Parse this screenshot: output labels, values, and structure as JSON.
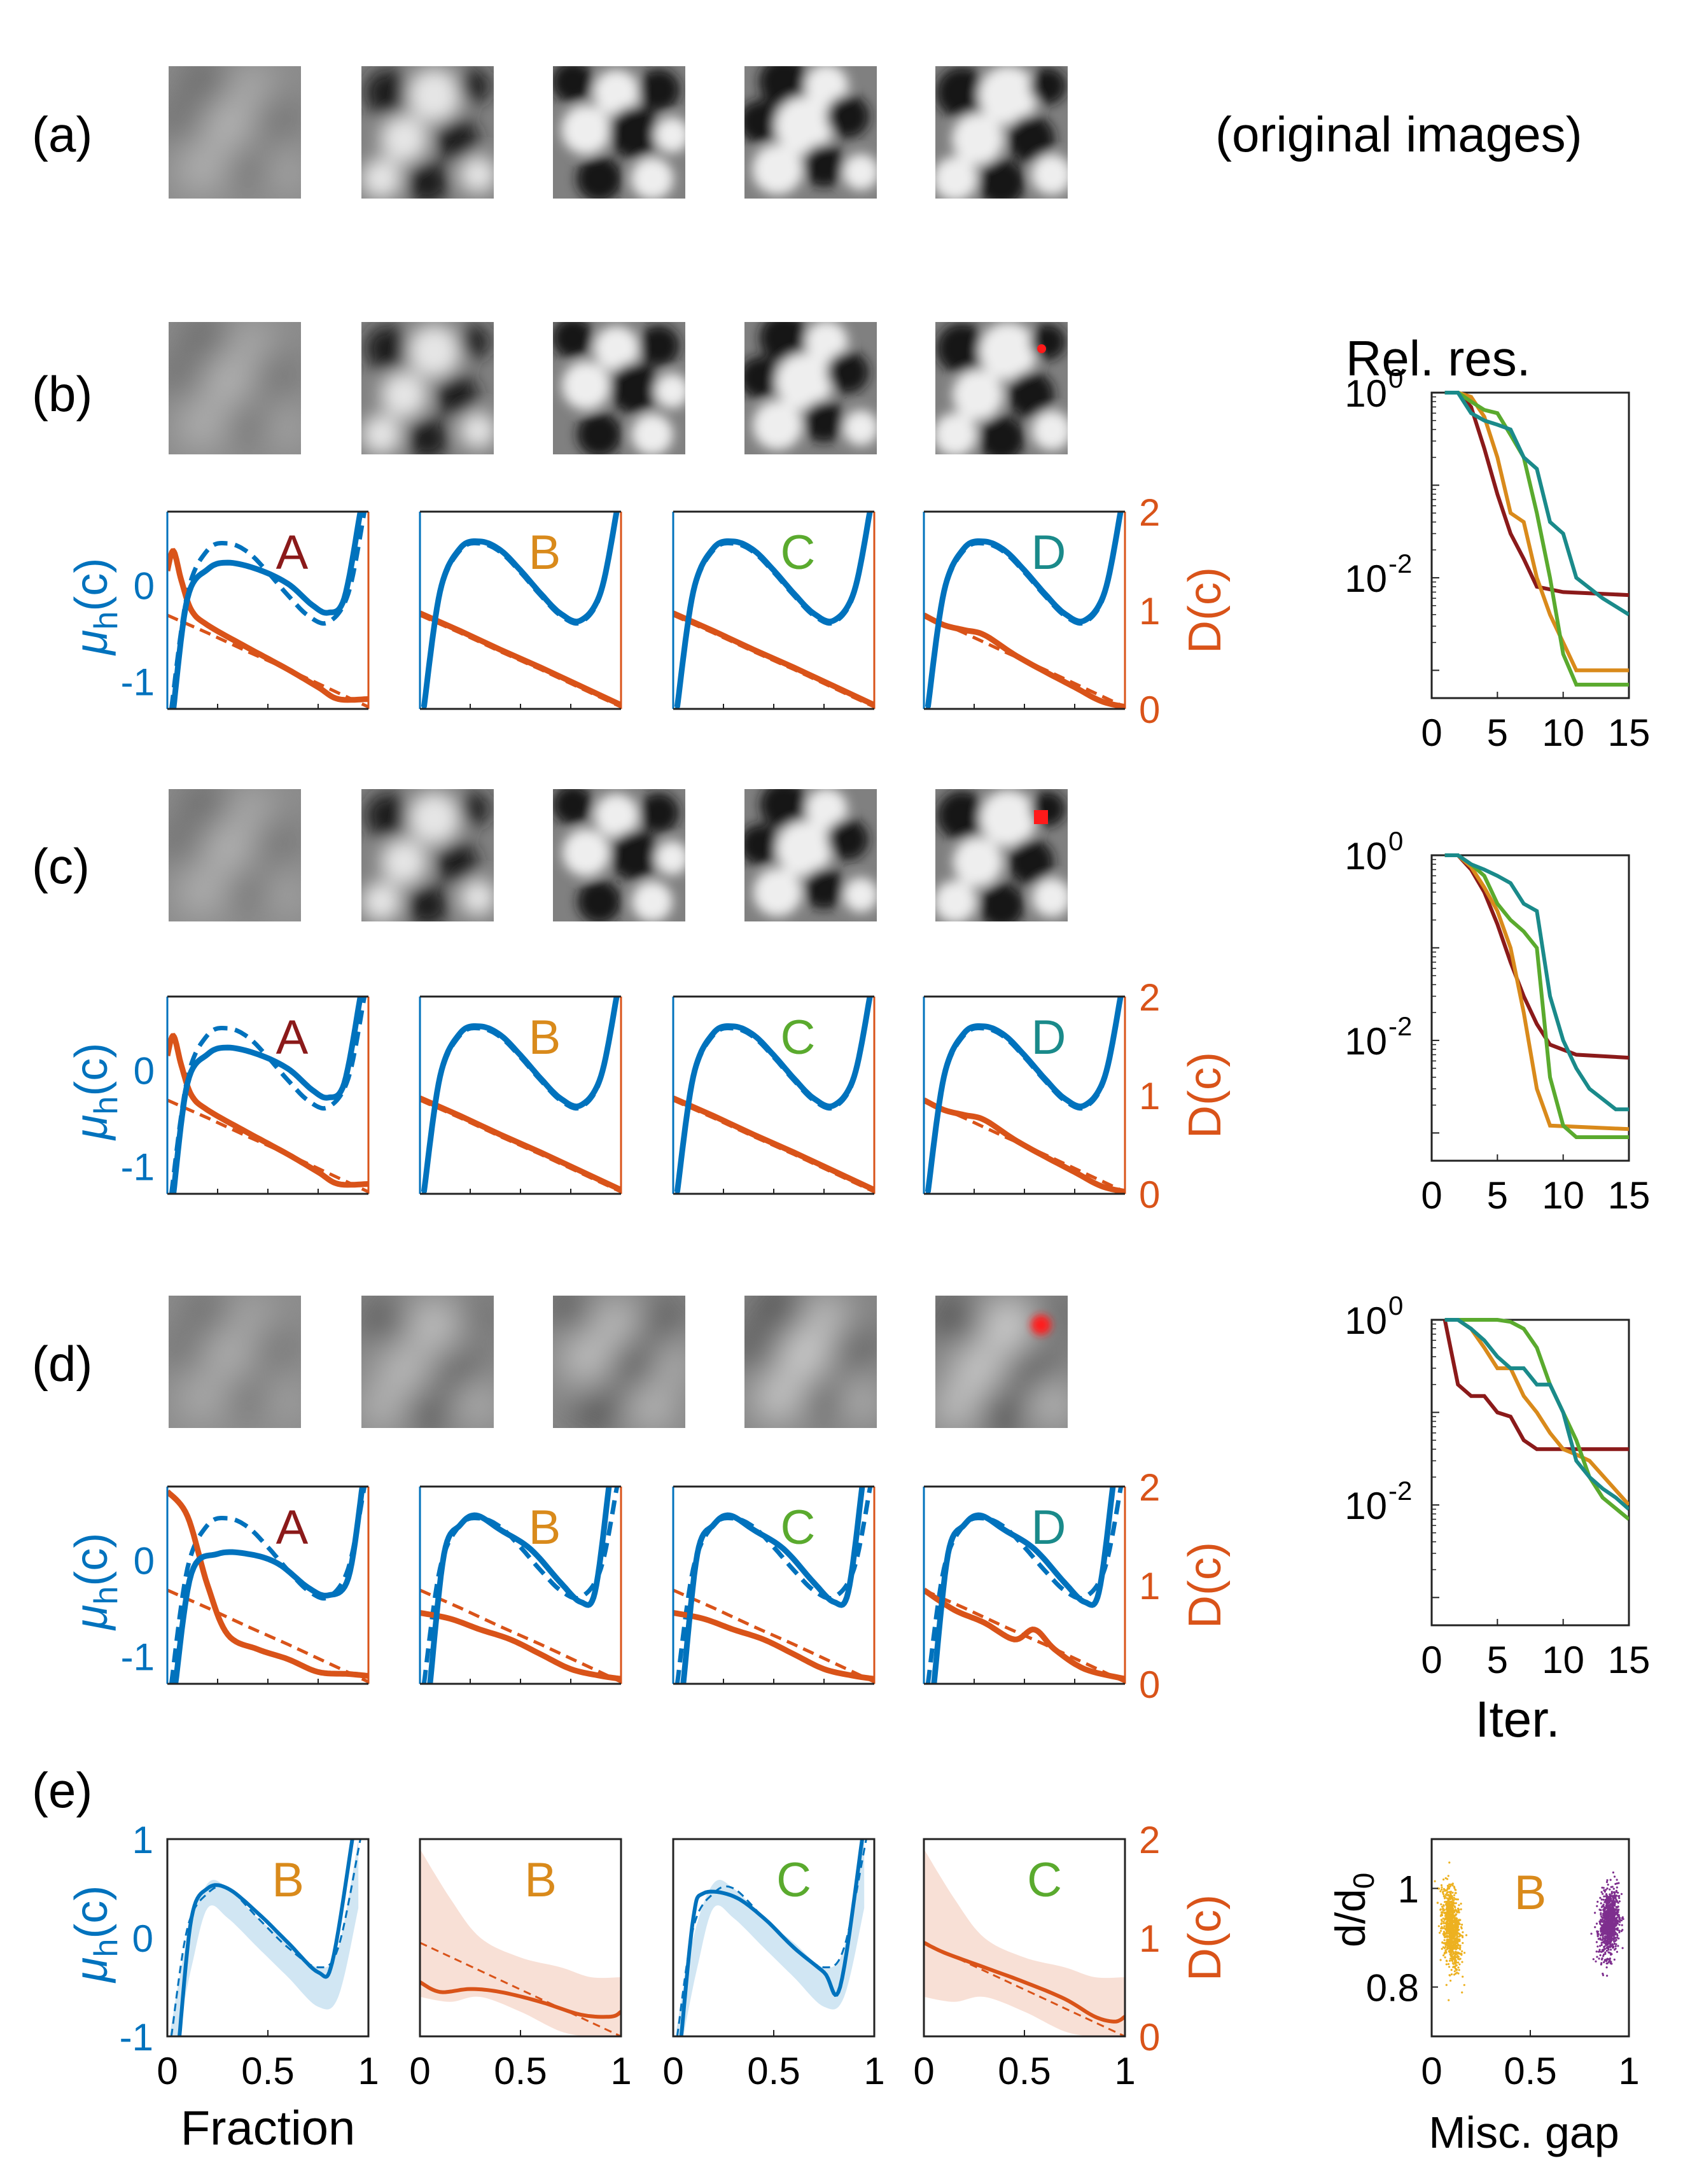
{
  "figure": {
    "row_labels": [
      "(a)",
      "(b)",
      "(c)",
      "(d)",
      "(e)"
    ],
    "original_images_caption": "(original images)",
    "rel_res_title": "Rel. res.",
    "perturbation_markers": [
      "small red dot",
      "red square",
      "red blurred blob"
    ]
  },
  "colors": {
    "mu_blue": "#0072BD",
    "d_orange": "#D95319",
    "A": "#8B1A1A",
    "B": "#D98A1B",
    "C": "#5AAA2E",
    "D": "#1A8A8A",
    "purple": "#7E2F8E",
    "gold": "#EDB120",
    "red": "#FF1A1A"
  },
  "chart_data": [
    {
      "type": "line",
      "name": "mu-D-panels",
      "rows": [
        "b",
        "c",
        "d"
      ],
      "panels": [
        "A",
        "B",
        "C",
        "D"
      ],
      "left_axis": {
        "label": "μ",
        "subscript": "h",
        "suffix": "(c)",
        "ticks": [
          "0",
          "-1"
        ],
        "ylim": [
          -1.3,
          0.75
        ]
      },
      "right_axis": {
        "label": "D(c)",
        "ticks": [
          "2",
          "1",
          "0"
        ],
        "ylim": [
          0,
          2
        ]
      },
      "series": [
        {
          "name": "mu_h true (dashed)",
          "x": [
            0.02,
            0.1,
            0.2,
            0.3,
            0.4,
            0.5,
            0.6,
            0.7,
            0.8,
            0.9,
            0.98
          ],
          "values": [
            -1.3,
            -0.1,
            0.35,
            0.42,
            0.33,
            0.12,
            -0.12,
            -0.33,
            -0.4,
            -0.1,
            0.75
          ]
        },
        {
          "name": "D true (dashed)",
          "x": [
            0,
            0.2,
            0.4,
            0.6,
            0.8,
            1.0
          ],
          "values": [
            0.95,
            0.77,
            0.58,
            0.4,
            0.21,
            0.02
          ]
        }
      ]
    },
    {
      "type": "line",
      "name": "relative-residual",
      "rows": [
        "b",
        "c",
        "d"
      ],
      "title": "Rel. res.",
      "xlabel": "Iter.",
      "xlim": [
        0,
        15
      ],
      "yscale": "log",
      "xticks": [
        "0",
        "5",
        "10",
        "15"
      ],
      "yticks": [
        "10",
        "10"
      ],
      "ytick_exponents": [
        "0",
        "-2"
      ],
      "series_order": [
        "A",
        "B",
        "C",
        "D"
      ],
      "rows_data": {
        "b": {
          "A": [
            [
              1,
              1
            ],
            [
              2,
              1
            ],
            [
              3,
              0.7
            ],
            [
              4,
              0.25
            ],
            [
              5,
              0.08
            ],
            [
              6,
              0.03
            ],
            [
              7,
              0.016
            ],
            [
              8,
              0.008
            ],
            [
              10,
              0.007
            ],
            [
              15,
              0.0065
            ]
          ],
          "B": [
            [
              1,
              1
            ],
            [
              2,
              1
            ],
            [
              3,
              0.9
            ],
            [
              4,
              0.55
            ],
            [
              5,
              0.2
            ],
            [
              6,
              0.05
            ],
            [
              7,
              0.04
            ],
            [
              8,
              0.01
            ],
            [
              9,
              0.004
            ],
            [
              10,
              0.002
            ],
            [
              11,
              0.001
            ],
            [
              15,
              0.001
            ]
          ],
          "C": [
            [
              1,
              1
            ],
            [
              2,
              1
            ],
            [
              3,
              0.8
            ],
            [
              4,
              0.65
            ],
            [
              5,
              0.6
            ],
            [
              6,
              0.35
            ],
            [
              7,
              0.2
            ],
            [
              8,
              0.05
            ],
            [
              9,
              0.01
            ],
            [
              10,
              0.0015
            ],
            [
              11,
              0.0007
            ],
            [
              15,
              0.0007
            ]
          ],
          "D": [
            [
              1,
              1
            ],
            [
              2,
              1
            ],
            [
              3,
              0.6
            ],
            [
              4,
              0.5
            ],
            [
              5,
              0.45
            ],
            [
              6,
              0.4
            ],
            [
              7,
              0.2
            ],
            [
              8,
              0.15
            ],
            [
              9,
              0.04
            ],
            [
              10,
              0.03
            ],
            [
              11,
              0.01
            ],
            [
              13,
              0.006
            ],
            [
              15,
              0.004
            ]
          ]
        },
        "c": {
          "A": [
            [
              1,
              1
            ],
            [
              2,
              1
            ],
            [
              3,
              0.7
            ],
            [
              4,
              0.4
            ],
            [
              5,
              0.18
            ],
            [
              6,
              0.07
            ],
            [
              7,
              0.03
            ],
            [
              8,
              0.015
            ],
            [
              9,
              0.009
            ],
            [
              11,
              0.007
            ],
            [
              15,
              0.0065
            ]
          ],
          "B": [
            [
              1,
              1
            ],
            [
              2,
              1
            ],
            [
              3,
              0.75
            ],
            [
              4,
              0.45
            ],
            [
              5,
              0.25
            ],
            [
              6,
              0.1
            ],
            [
              7,
              0.02
            ],
            [
              8,
              0.003
            ],
            [
              9,
              0.0012
            ],
            [
              15,
              0.0011
            ]
          ],
          "C": [
            [
              1,
              1
            ],
            [
              2,
              1
            ],
            [
              3,
              0.8
            ],
            [
              4,
              0.6
            ],
            [
              5,
              0.3
            ],
            [
              6,
              0.2
            ],
            [
              7,
              0.15
            ],
            [
              8,
              0.1
            ],
            [
              9,
              0.004
            ],
            [
              10,
              0.0012
            ],
            [
              11,
              0.0009
            ],
            [
              15,
              0.0009
            ]
          ],
          "D": [
            [
              1,
              1
            ],
            [
              2,
              1
            ],
            [
              3,
              0.8
            ],
            [
              4,
              0.7
            ],
            [
              5,
              0.6
            ],
            [
              6,
              0.5
            ],
            [
              7,
              0.3
            ],
            [
              8,
              0.25
            ],
            [
              9,
              0.03
            ],
            [
              10,
              0.01
            ],
            [
              11,
              0.005
            ],
            [
              12,
              0.003
            ],
            [
              14,
              0.0018
            ],
            [
              15,
              0.0018
            ]
          ]
        },
        "d": {
          "A": [
            [
              1,
              1
            ],
            [
              2,
              0.2
            ],
            [
              3,
              0.15
            ],
            [
              4,
              0.15
            ],
            [
              5,
              0.1
            ],
            [
              6,
              0.09
            ],
            [
              7,
              0.05
            ],
            [
              8,
              0.04
            ],
            [
              9,
              0.04
            ],
            [
              15,
              0.04
            ]
          ],
          "B": [
            [
              1,
              1
            ],
            [
              2,
              1
            ],
            [
              3,
              0.8
            ],
            [
              4,
              0.5
            ],
            [
              5,
              0.3
            ],
            [
              6,
              0.3
            ],
            [
              7,
              0.15
            ],
            [
              8,
              0.1
            ],
            [
              9,
              0.06
            ],
            [
              10,
              0.04
            ],
            [
              11,
              0.035
            ],
            [
              12,
              0.03
            ],
            [
              15,
              0.01
            ]
          ],
          "C": [
            [
              1,
              1
            ],
            [
              2,
              1
            ],
            [
              3,
              1
            ],
            [
              4,
              1
            ],
            [
              5,
              1
            ],
            [
              6,
              0.95
            ],
            [
              7,
              0.8
            ],
            [
              8,
              0.5
            ],
            [
              9,
              0.2
            ],
            [
              10,
              0.1
            ],
            [
              11,
              0.05
            ],
            [
              12,
              0.02
            ],
            [
              13,
              0.012
            ],
            [
              15,
              0.007
            ]
          ],
          "D": [
            [
              1,
              1
            ],
            [
              2,
              1
            ],
            [
              3,
              0.8
            ],
            [
              4,
              0.6
            ],
            [
              5,
              0.4
            ],
            [
              6,
              0.3
            ],
            [
              7,
              0.3
            ],
            [
              8,
              0.2
            ],
            [
              9,
              0.2
            ],
            [
              10,
              0.1
            ],
            [
              11,
              0.03
            ],
            [
              12,
              0.02
            ],
            [
              13,
              0.015
            ],
            [
              14,
              0.012
            ],
            [
              15,
              0.009
            ]
          ]
        }
      }
    },
    {
      "type": "line",
      "name": "uncertainty-panels",
      "row": "e",
      "panel_letters": [
        "B",
        "B",
        "C",
        "C"
      ],
      "panel_kinds": [
        "mu",
        "D",
        "mu",
        "D"
      ],
      "xlabel": "Fraction",
      "xticks": [
        "0",
        "0.5",
        "1"
      ],
      "left_axis": {
        "ticks": [
          "1",
          "0",
          "-1"
        ],
        "ylim": [
          -1,
          1
        ]
      },
      "right_axis": {
        "ticks": [
          "2",
          "1",
          "0"
        ],
        "ylim": [
          0,
          2
        ]
      }
    },
    {
      "type": "scatter",
      "name": "misc-gap-scatter",
      "row": "e",
      "xlabel": "Misc. gap",
      "ylabel": "d/d",
      "ylabel_subscript": "0",
      "annotation": "B",
      "xlim": [
        0,
        1
      ],
      "ylim": [
        0.7,
        1.1
      ],
      "xticks": [
        "0",
        "0.5",
        "1"
      ],
      "yticks": [
        "1",
        "0.8"
      ],
      "series": [
        {
          "name": "low miscibility branch",
          "x_center": 0.1,
          "x_spread": 0.04,
          "y_center": 0.92,
          "y_spread": 0.07
        },
        {
          "name": "high miscibility branch",
          "x_center": 0.9,
          "x_spread": 0.04,
          "y_center": 0.93,
          "y_spread": 0.06
        }
      ]
    }
  ]
}
